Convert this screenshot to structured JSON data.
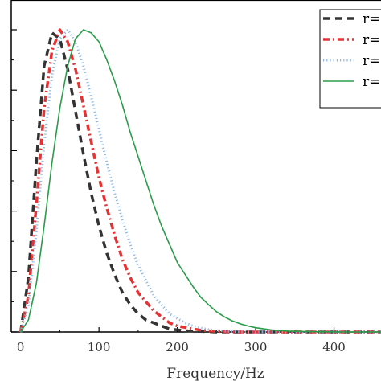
{
  "chart_data": {
    "type": "line",
    "xlabel": "Frequency/Hz",
    "ylabel": "",
    "xlim": [
      -12,
      460
    ],
    "ylim": [
      0,
      1.0
    ],
    "x_ticks": [
      0,
      100,
      200,
      300,
      400
    ],
    "y_ticks": [
      0,
      0.2,
      0.4,
      0.6,
      0.8,
      1.0
    ],
    "x": [
      0,
      10,
      20,
      30,
      40,
      50,
      60,
      70,
      80,
      90,
      100,
      110,
      120,
      130,
      140,
      150,
      160,
      170,
      180,
      190,
      200,
      210,
      220,
      230,
      240,
      250,
      260,
      270,
      280,
      290,
      300,
      320,
      340,
      360,
      380,
      400,
      420,
      440,
      460
    ],
    "grid": false,
    "legend_position": "top-right",
    "series": [
      {
        "name": "r=",
        "color": "#333333",
        "style": "dashed",
        "values": [
          0,
          0.18,
          0.56,
          0.88,
          0.99,
          0.97,
          0.87,
          0.73,
          0.59,
          0.46,
          0.35,
          0.26,
          0.19,
          0.13,
          0.09,
          0.06,
          0.04,
          0.03,
          0.02,
          0.01,
          0.007,
          0.004,
          0.003,
          0.002,
          0.001,
          0,
          0,
          0,
          0,
          0,
          0,
          0,
          0,
          0,
          0,
          0,
          0,
          0,
          0
        ]
      },
      {
        "name": "r=",
        "color": "#e63232",
        "style": "dash-dot",
        "values": [
          0,
          0.12,
          0.42,
          0.74,
          0.93,
          1.0,
          0.96,
          0.87,
          0.75,
          0.63,
          0.51,
          0.41,
          0.32,
          0.24,
          0.18,
          0.13,
          0.1,
          0.07,
          0.05,
          0.03,
          0.02,
          0.015,
          0.01,
          0.006,
          0.004,
          0.002,
          0.001,
          0,
          0,
          0,
          0,
          0,
          0,
          0,
          0,
          0,
          0,
          0,
          0
        ]
      },
      {
        "name": "r=",
        "color": "#8ab8e6",
        "style": "dotted",
        "values": [
          0,
          0.09,
          0.33,
          0.62,
          0.85,
          0.97,
          1.0,
          0.96,
          0.88,
          0.78,
          0.67,
          0.56,
          0.46,
          0.37,
          0.29,
          0.22,
          0.17,
          0.12,
          0.09,
          0.06,
          0.045,
          0.03,
          0.02,
          0.013,
          0.008,
          0.005,
          0.003,
          0.002,
          0.001,
          0,
          0,
          0,
          0,
          0,
          0,
          0,
          0,
          0,
          0
        ]
      },
      {
        "name": "r=",
        "color": "#2a9d4a",
        "style": "solid",
        "values": [
          0,
          0.04,
          0.16,
          0.35,
          0.56,
          0.74,
          0.88,
          0.97,
          1.0,
          0.99,
          0.96,
          0.9,
          0.83,
          0.75,
          0.66,
          0.58,
          0.5,
          0.42,
          0.35,
          0.29,
          0.23,
          0.19,
          0.15,
          0.115,
          0.09,
          0.067,
          0.05,
          0.037,
          0.027,
          0.02,
          0.014,
          0.007,
          0.003,
          0.0015,
          0.0007,
          0.0003,
          0,
          0,
          0
        ]
      }
    ]
  }
}
